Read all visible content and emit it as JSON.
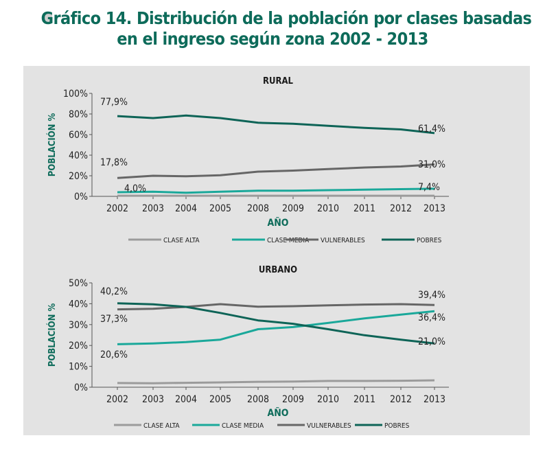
{
  "title": {
    "line1": "Gráfico 14. Distribución de la población por clases basadas",
    "line2": "en el ingreso según zona 2002 - 2013"
  },
  "colors": {
    "accent": "#0d6b5a",
    "clase_alta": "#9b9b9b",
    "clase_media": "#1aa89a",
    "vulnerables": "#666666",
    "pobres": "#0e6457",
    "panel_bg": "#e3e3e3"
  },
  "chart_data": [
    {
      "type": "line",
      "title": "RURAL",
      "xlabel": "AÑO",
      "ylabel": "POBLACIÓN %",
      "categories": [
        "2002",
        "2003",
        "2004",
        "2005",
        "2008",
        "2009",
        "2010",
        "2011",
        "2012",
        "2013"
      ],
      "ylim": [
        0,
        100
      ],
      "yticks": [
        "0%",
        "20%",
        "40%",
        "60%",
        "80%",
        "100%"
      ],
      "grid": false,
      "legend_position": "bottom",
      "series": [
        {
          "name": "CLASE ALTA",
          "values": [
            0.6,
            0.6,
            0.6,
            0.6,
            0.6,
            0.6,
            0.6,
            0.6,
            0.6,
            0.6
          ]
        },
        {
          "name": "CLASE MEDIA",
          "values": [
            4.0,
            4.5,
            3.5,
            4.5,
            5.5,
            5.5,
            6.0,
            6.5,
            7.0,
            7.4
          ]
        },
        {
          "name": "VULNERABLES",
          "values": [
            17.8,
            20,
            19.5,
            20.5,
            24,
            25,
            26.5,
            28,
            29,
            31.0
          ]
        },
        {
          "name": "POBRES",
          "values": [
            77.9,
            76,
            78.5,
            76,
            71.5,
            70.5,
            68.5,
            66.5,
            65,
            61.4
          ]
        }
      ],
      "annotations": [
        {
          "text": "77,9%",
          "x": "2002",
          "y": 77.9
        },
        {
          "text": "17,8%",
          "x": "2002",
          "y": 17.8
        },
        {
          "text": "4,0%",
          "x": "2002",
          "y": 4.0
        },
        {
          "text": "61,4%",
          "x": "2013",
          "y": 61.4
        },
        {
          "text": "31,0%",
          "x": "2013",
          "y": 31.0
        },
        {
          "text": "7,4%",
          "x": "2013",
          "y": 7.4
        }
      ]
    },
    {
      "type": "line",
      "title": "URBANO",
      "xlabel": "AÑO",
      "ylabel": "POBLACIÓN %",
      "categories": [
        "2002",
        "2003",
        "2004",
        "2005",
        "2008",
        "2009",
        "2010",
        "2011",
        "2012",
        "2013"
      ],
      "ylim": [
        0,
        50
      ],
      "yticks": [
        "0%",
        "10%",
        "20%",
        "30%",
        "40%",
        "50%"
      ],
      "grid": false,
      "legend_position": "bottom",
      "series": [
        {
          "name": "CLASE ALTA",
          "values": [
            2.0,
            1.9,
            2.1,
            2.3,
            2.6,
            2.7,
            3.0,
            3.0,
            3.1,
            3.3
          ]
        },
        {
          "name": "CLASE MEDIA",
          "values": [
            20.6,
            21,
            21.6,
            22.8,
            27.8,
            28.8,
            30.8,
            33,
            34.8,
            36.4
          ]
        },
        {
          "name": "VULNERABLES",
          "values": [
            37.3,
            37.6,
            38.5,
            39.8,
            38.6,
            38.8,
            39.2,
            39.6,
            39.8,
            39.4
          ]
        },
        {
          "name": "POBRES",
          "values": [
            40.2,
            39.7,
            38.5,
            35.6,
            32,
            30.4,
            27.8,
            24.9,
            22.8,
            21.0
          ]
        }
      ],
      "annotations": [
        {
          "text": "40,2%",
          "x": "2002",
          "y": 40.2
        },
        {
          "text": "37,3%",
          "x": "2002",
          "y": 37.3
        },
        {
          "text": "20,6%",
          "x": "2002",
          "y": 20.6
        },
        {
          "text": "39,4%",
          "x": "2013",
          "y": 39.4
        },
        {
          "text": "36,4%",
          "x": "2013",
          "y": 36.4
        },
        {
          "text": "21,0%",
          "x": "2013",
          "y": 21.0
        }
      ]
    }
  ]
}
